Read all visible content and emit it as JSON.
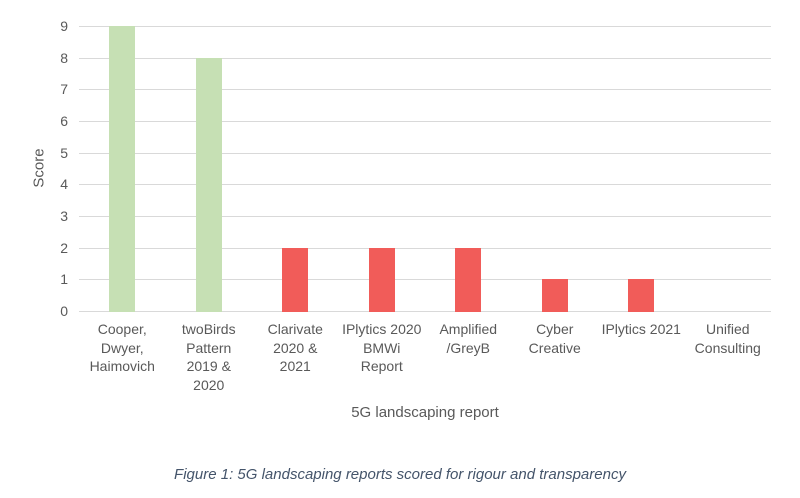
{
  "figure": {
    "caption": "Figure 1: 5G landscaping reports scored for rigour and transparency"
  },
  "chart_data": {
    "type": "bar",
    "title": "",
    "xlabel": "5G landscaping report",
    "ylabel": "Score",
    "categories": [
      "Cooper, Dwyer, Haimovich",
      "twoBirds Pattern 2019 & 2020",
      "Clarivate 2020 & 2021",
      "IPlytics 2020 BMWi Report",
      "Amplified /GreyB",
      "Cyber Creative",
      "IPlytics 2021",
      "Unified Consulting"
    ],
    "category_lines": [
      [
        "Cooper,",
        "Dwyer,",
        "Haimovich"
      ],
      [
        "twoBirds",
        "Pattern",
        "2019 &",
        "2020"
      ],
      [
        "Clarivate",
        "2020 &",
        "2021"
      ],
      [
        "IPlytics 2020",
        "BMWi",
        "Report"
      ],
      [
        "Amplified",
        "/GreyB"
      ],
      [
        "Cyber",
        "Creative"
      ],
      [
        "IPlytics 2021"
      ],
      [
        "Unified",
        "Consulting"
      ]
    ],
    "values": [
      9,
      8,
      2,
      2,
      2,
      1,
      1,
      0
    ],
    "bar_colors": [
      "#c6e0b4",
      "#c6e0b4",
      "#f15c59",
      "#f15c59",
      "#f15c59",
      "#f15c59",
      "#f15c59",
      "#f15c59"
    ],
    "ylim": [
      0,
      9
    ],
    "yticks": [
      0,
      1,
      2,
      3,
      4,
      5,
      6,
      7,
      8,
      9
    ],
    "grid": true,
    "legend": "none",
    "palette": {
      "green_bar": "#c6e0b4",
      "red_bar": "#f15c59",
      "gridline": "#d9d9d9",
      "axis_text": "#595959",
      "caption_text": "#44546a"
    }
  }
}
